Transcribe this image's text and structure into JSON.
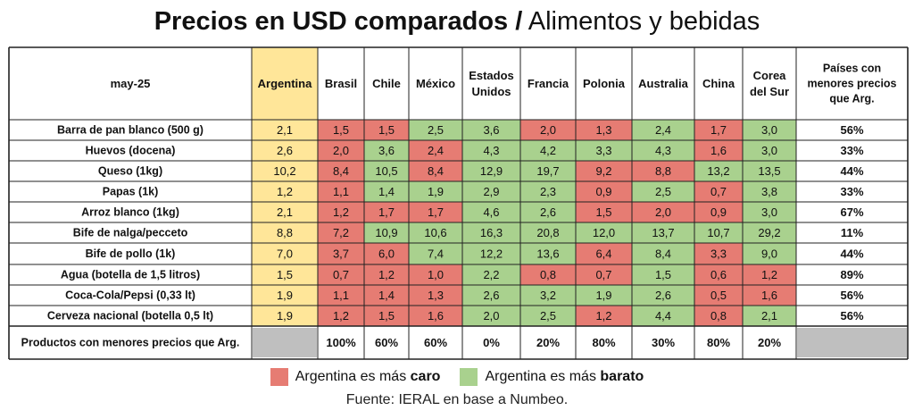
{
  "title": {
    "bold": "Precios en USD comparados /",
    "light": "Alimentos y bebidas"
  },
  "colors": {
    "caro": "#e67c73",
    "barato": "#a9d18e",
    "argentina": "#ffe699",
    "gray": "#bfbfbf"
  },
  "chart_data": {
    "type": "table",
    "corner_label": "may-25",
    "columns": [
      "Argentina",
      "Brasil",
      "Chile",
      "México",
      "Estados Unidos",
      "Francia",
      "Polonia",
      "Australia",
      "China",
      "Corea del Sur"
    ],
    "last_column": "Países con menores precios que Arg.",
    "rows": [
      {
        "label": "Barra de pan blanco (500 g)",
        "values": [
          "2,1",
          "1,5",
          "1,5",
          "2,5",
          "3,6",
          "2,0",
          "1,3",
          "2,4",
          "1,7",
          "3,0"
        ],
        "colors": [
          "a",
          "r",
          "r",
          "g",
          "g",
          "r",
          "r",
          "g",
          "r",
          "g"
        ],
        "pct": "56%"
      },
      {
        "label": "Huevos (docena)",
        "values": [
          "2,6",
          "2,0",
          "3,6",
          "2,4",
          "4,3",
          "4,2",
          "3,3",
          "4,3",
          "1,6",
          "3,0"
        ],
        "colors": [
          "a",
          "r",
          "g",
          "r",
          "g",
          "g",
          "g",
          "g",
          "r",
          "g"
        ],
        "pct": "33%"
      },
      {
        "label": "Queso (1kg)",
        "values": [
          "10,2",
          "8,4",
          "10,5",
          "8,4",
          "12,9",
          "19,7",
          "9,2",
          "8,8",
          "13,2",
          "13,5"
        ],
        "colors": [
          "a",
          "r",
          "g",
          "r",
          "g",
          "g",
          "r",
          "r",
          "g",
          "g"
        ],
        "pct": "44%"
      },
      {
        "label": "Papas (1k)",
        "values": [
          "1,2",
          "1,1",
          "1,4",
          "1,9",
          "2,9",
          "2,3",
          "0,9",
          "2,5",
          "0,7",
          "3,8"
        ],
        "colors": [
          "a",
          "r",
          "g",
          "g",
          "g",
          "g",
          "r",
          "g",
          "r",
          "g"
        ],
        "pct": "33%"
      },
      {
        "label": "Arroz blanco (1kg)",
        "values": [
          "2,1",
          "1,2",
          "1,7",
          "1,7",
          "4,6",
          "2,6",
          "1,5",
          "2,0",
          "0,9",
          "3,0"
        ],
        "colors": [
          "a",
          "r",
          "r",
          "r",
          "g",
          "g",
          "r",
          "r",
          "r",
          "g"
        ],
        "pct": "67%"
      },
      {
        "label": "Bife de nalga/pecceto",
        "values": [
          "8,8",
          "7,2",
          "10,9",
          "10,6",
          "16,3",
          "20,8",
          "12,0",
          "13,7",
          "10,7",
          "29,2"
        ],
        "colors": [
          "a",
          "r",
          "g",
          "g",
          "g",
          "g",
          "g",
          "g",
          "g",
          "g"
        ],
        "pct": "11%"
      },
      {
        "label": "Bife de pollo (1k)",
        "values": [
          "7,0",
          "3,7",
          "6,0",
          "7,4",
          "12,2",
          "13,6",
          "6,4",
          "8,4",
          "3,3",
          "9,0"
        ],
        "colors": [
          "a",
          "r",
          "r",
          "g",
          "g",
          "g",
          "r",
          "g",
          "r",
          "g"
        ],
        "pct": "44%"
      },
      {
        "label": "Agua (botella de 1,5 litros)",
        "values": [
          "1,5",
          "0,7",
          "1,2",
          "1,0",
          "2,2",
          "0,8",
          "0,7",
          "1,5",
          "0,6",
          "1,2"
        ],
        "colors": [
          "a",
          "r",
          "r",
          "r",
          "g",
          "r",
          "r",
          "g",
          "r",
          "r"
        ],
        "pct": "89%"
      },
      {
        "label": "Coca-Cola/Pepsi (0,33 lt)",
        "values": [
          "1,9",
          "1,1",
          "1,4",
          "1,3",
          "2,6",
          "3,2",
          "1,9",
          "2,6",
          "0,5",
          "1,6"
        ],
        "colors": [
          "a",
          "r",
          "r",
          "r",
          "g",
          "g",
          "g",
          "g",
          "r",
          "r"
        ],
        "pct": "56%"
      },
      {
        "label": "Cerveza nacional (botella 0,5 lt)",
        "values": [
          "1,9",
          "1,2",
          "1,5",
          "1,6",
          "2,0",
          "2,5",
          "1,2",
          "4,4",
          "0,8",
          "2,1"
        ],
        "colors": [
          "a",
          "r",
          "r",
          "r",
          "g",
          "g",
          "r",
          "g",
          "r",
          "g"
        ],
        "pct": "56%"
      }
    ],
    "footer": {
      "label": "Productos con menores precios que Arg.",
      "values": [
        "",
        "100%",
        "60%",
        "60%",
        "0%",
        "20%",
        "80%",
        "30%",
        "80%",
        "20%"
      ],
      "last": ""
    }
  },
  "legend": {
    "caro_prefix": "Argentina es más ",
    "caro_bold": "caro",
    "barato_prefix": "Argentina es más ",
    "barato_bold": "barato"
  },
  "source": "Fuente: IERAL en base a Numbeo."
}
